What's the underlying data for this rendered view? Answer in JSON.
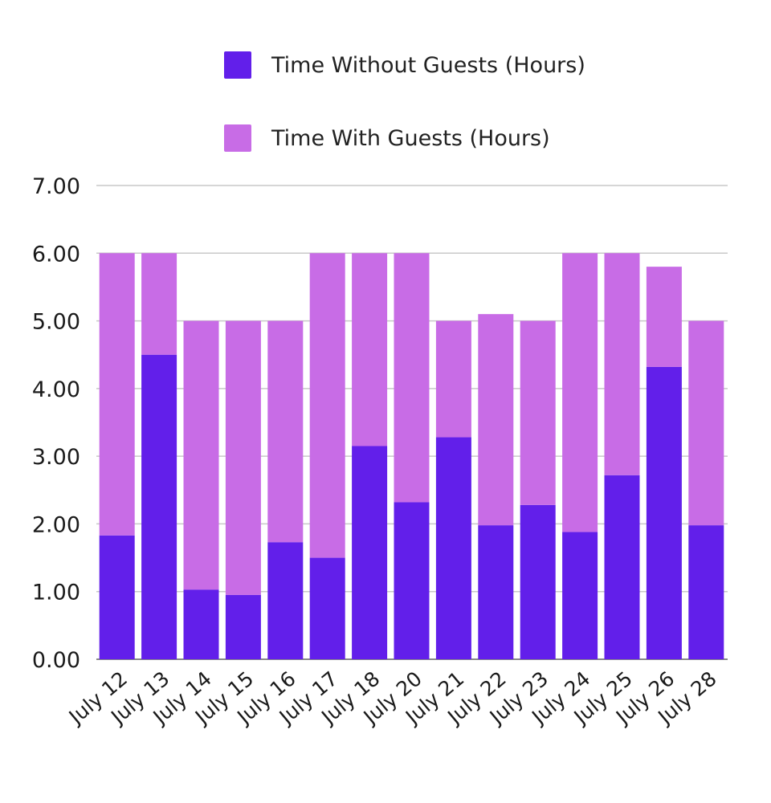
{
  "chart_data": {
    "type": "bar",
    "stacked": true,
    "categories": [
      "July 12",
      "July 13",
      "July 14",
      "July 15",
      "July 16",
      "July 17",
      "July 18",
      "July 20",
      "July 21",
      "July 22",
      "July 23",
      "July 24",
      "July 25",
      "July 26",
      "July 28"
    ],
    "series": [
      {
        "name": "Time Without Guests (Hours)",
        "color": "#621fea",
        "values": [
          1.83,
          4.5,
          1.03,
          0.95,
          1.73,
          1.5,
          3.15,
          2.32,
          3.28,
          1.98,
          2.28,
          1.88,
          2.72,
          4.32,
          1.98
        ]
      },
      {
        "name": "Time With Guests (Hours)",
        "color": "#c86ce6",
        "values": [
          4.17,
          1.5,
          3.97,
          4.05,
          3.27,
          4.5,
          2.85,
          3.68,
          1.72,
          3.12,
          2.72,
          4.12,
          3.28,
          1.48,
          3.02
        ]
      }
    ],
    "yticks": [
      "0.00",
      "1.00",
      "2.00",
      "3.00",
      "4.00",
      "5.00",
      "6.00",
      "7.00"
    ],
    "ylim": [
      0,
      7
    ],
    "grid": true,
    "legend_position": "top"
  }
}
